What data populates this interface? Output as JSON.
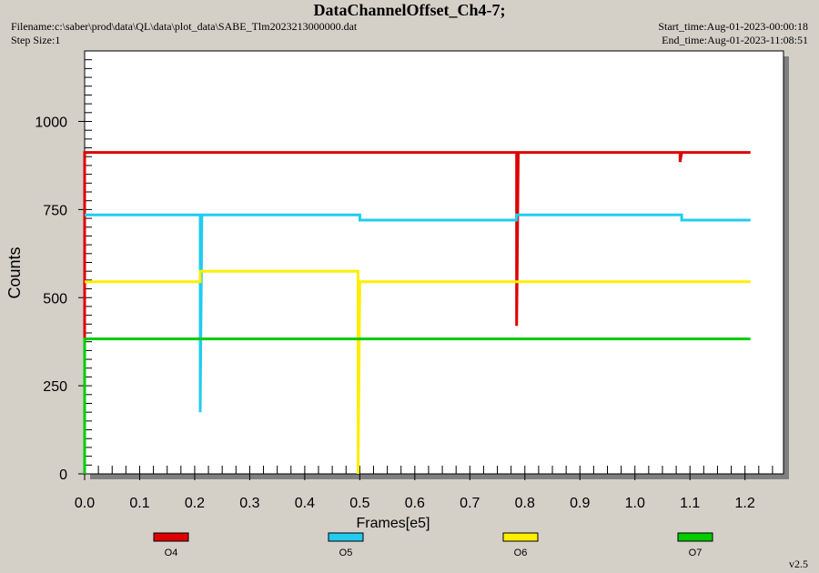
{
  "header": {
    "title": "DataChannelOffset_Ch4-7;",
    "filename": "Filename:c:\\saber\\prod\\data\\QL\\data\\plot_data\\SABE_Tlm2023213000000.dat",
    "step_size": "Step Size:1",
    "start_time": "Start_time:Aug-01-2023-00:00:18",
    "end_time": "End_time:Aug-01-2023-11:08:51"
  },
  "version": "v2.5",
  "chart_data": {
    "type": "line",
    "xlabel": "Frames[e5]",
    "ylabel": "Counts",
    "xlim": [
      0,
      1.27
    ],
    "ylim": [
      0,
      1200
    ],
    "xticks": [
      "0.0",
      "0.1",
      "0.2",
      "0.3",
      "0.4",
      "0.5",
      "0.6",
      "0.7",
      "0.8",
      "0.9",
      "1.0",
      "1.1",
      "1.2"
    ],
    "yticks": [
      "0",
      "250",
      "500",
      "750",
      "1000"
    ],
    "legend_position": "bottom",
    "series": [
      {
        "name": "O4",
        "color": "#dd0000",
        "points": [
          [
            0,
            0
          ],
          [
            0,
            912
          ],
          [
            0.785,
            912
          ],
          [
            0.785,
            420
          ],
          [
            0.788,
            912
          ],
          [
            1.082,
            912
          ],
          [
            1.082,
            885
          ],
          [
            1.085,
            912
          ],
          [
            1.21,
            912
          ]
        ]
      },
      {
        "name": "O5",
        "color": "#22ccee",
        "points": [
          [
            0,
            735
          ],
          [
            0.21,
            735
          ],
          [
            0.21,
            175
          ],
          [
            0.213,
            735
          ],
          [
            0.5,
            735
          ],
          [
            0.5,
            720
          ],
          [
            0.785,
            720
          ],
          [
            0.785,
            735
          ],
          [
            1.085,
            735
          ],
          [
            1.085,
            720
          ],
          [
            1.21,
            720
          ]
        ]
      },
      {
        "name": "O6",
        "color": "#ffee00",
        "points": [
          [
            0,
            545
          ],
          [
            0.21,
            545
          ],
          [
            0.21,
            575
          ],
          [
            0.497,
            575
          ],
          [
            0.497,
            0
          ],
          [
            0.5,
            545
          ],
          [
            1.21,
            545
          ]
        ]
      },
      {
        "name": "O7",
        "color": "#00cc00",
        "points": [
          [
            0,
            0
          ],
          [
            0,
            383
          ],
          [
            1.21,
            383
          ]
        ]
      }
    ]
  }
}
